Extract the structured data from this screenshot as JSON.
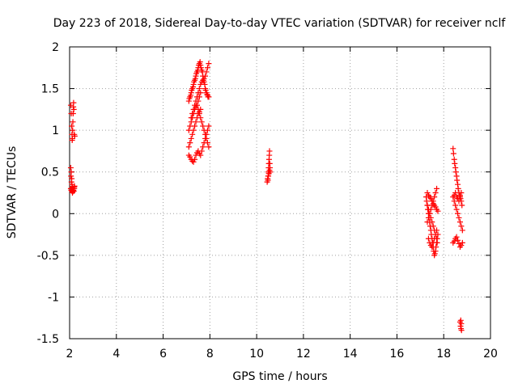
{
  "chart_data": {
    "type": "scatter",
    "title": "Day 223 of 2018, Sidereal Day-to-day VTEC variation (SDTVAR) for receiver nclf",
    "xlabel": "GPS time / hours",
    "ylabel": "SDTVAR / TECUs",
    "xlim": [
      2,
      20
    ],
    "ylim": [
      -1.5,
      2
    ],
    "xticks": [
      2,
      4,
      6,
      8,
      10,
      12,
      14,
      16,
      18,
      20
    ],
    "yticks": [
      -1.5,
      -1,
      -0.5,
      0,
      0.5,
      1,
      1.5,
      2
    ],
    "xtick_labels": [
      "2",
      "4",
      "6",
      "8",
      "10",
      "12",
      "14",
      "16",
      "18",
      "20"
    ],
    "ytick_labels": [
      "-1.5",
      "-1",
      "-0.5",
      "0",
      "0.5",
      "1",
      "1.5",
      "2"
    ],
    "grid": true,
    "marker": "plus",
    "color": "#ff0000",
    "series": [
      {
        "x": [
          2.05,
          2.07,
          2.09,
          2.1,
          2.11,
          2.12,
          2.13,
          2.14,
          2.15,
          2.16,
          2.17,
          2.18,
          2.2,
          2.22,
          2.05,
          2.07,
          2.09,
          2.1,
          2.12,
          2.14,
          2.16,
          2.18,
          2.2,
          2.21,
          2.06,
          2.08,
          2.1,
          2.12,
          2.05,
          2.07,
          2.1,
          2.13,
          2.15,
          2.18,
          2.2,
          7.1,
          7.12,
          7.15,
          7.18,
          7.2,
          7.22,
          7.25,
          7.28,
          7.3,
          7.32,
          7.35,
          7.38,
          7.4,
          7.42,
          7.45,
          7.48,
          7.5,
          7.52,
          7.55,
          7.58,
          7.6,
          7.62,
          7.65,
          7.68,
          7.7,
          7.72,
          7.75,
          7.78,
          7.8,
          7.82,
          7.85,
          7.88,
          7.9,
          7.92,
          7.95,
          7.2,
          7.25,
          7.3,
          7.35,
          7.4,
          7.45,
          7.5,
          7.55,
          7.6,
          7.65,
          7.7,
          7.75,
          7.8,
          7.85,
          7.9,
          7.95,
          7.1,
          7.15,
          7.2,
          7.25,
          7.3,
          7.35,
          7.4,
          7.45,
          7.5,
          7.55,
          7.6,
          7.45,
          7.5,
          7.55,
          7.6,
          7.65,
          7.7,
          7.75,
          7.8,
          7.85,
          7.9,
          7.95,
          7.1,
          7.15,
          7.2,
          7.25,
          7.3,
          7.35,
          7.4,
          7.45,
          7.5,
          7.55,
          7.6,
          7.65,
          7.7,
          7.75,
          7.8,
          7.85,
          7.9,
          7.95,
          7.1,
          7.15,
          7.2,
          7.25,
          7.3,
          7.35,
          7.4,
          7.45,
          7.5,
          7.55,
          7.6,
          10.45,
          10.47,
          10.49,
          10.5,
          10.51,
          10.52,
          10.53,
          10.54,
          10.55,
          10.56,
          10.57,
          10.58,
          10.5,
          10.48,
          10.52,
          10.55,
          17.25,
          17.27,
          17.3,
          17.32,
          17.35,
          17.37,
          17.4,
          17.42,
          17.45,
          17.47,
          17.5,
          17.52,
          17.55,
          17.57,
          17.6,
          17.62,
          17.65,
          17.67,
          17.7,
          17.72,
          17.75,
          17.3,
          17.35,
          17.4,
          17.45,
          17.5,
          17.55,
          17.6,
          17.65,
          17.7,
          17.75,
          17.3,
          17.35,
          17.4,
          17.45,
          17.5,
          17.55,
          17.6,
          17.65,
          17.7,
          17.3,
          17.35,
          17.4,
          17.45,
          17.5,
          17.55,
          17.6,
          17.65,
          17.7,
          17.72,
          17.35,
          17.4,
          17.45,
          17.5,
          17.55,
          17.6,
          17.65,
          17.7,
          18.4,
          18.42,
          18.45,
          18.47,
          18.5,
          18.52,
          18.55,
          18.57,
          18.6,
          18.62,
          18.65,
          18.68,
          18.7,
          18.72,
          18.75,
          18.78,
          18.4,
          18.45,
          18.5,
          18.55,
          18.6,
          18.65,
          18.7,
          18.75,
          18.8,
          18.4,
          18.45,
          18.5,
          18.55,
          18.6,
          18.65,
          18.7,
          18.75,
          18.8,
          18.45,
          18.5,
          18.55,
          18.6,
          18.65,
          18.7,
          18.75,
          18.7,
          18.72,
          18.74,
          18.76,
          18.75,
          18.73
        ],
        "y": [
          1.3,
          1.2,
          1.05,
          0.95,
          0.88,
          0.9,
          1.0,
          1.1,
          1.2,
          1.28,
          1.33,
          1.25,
          0.95,
          0.93,
          0.55,
          0.5,
          0.42,
          0.35,
          0.32,
          0.3,
          0.28,
          0.27,
          0.3,
          0.33,
          0.45,
          0.38,
          0.3,
          0.25,
          0.3,
          0.28,
          0.27,
          0.26,
          0.28,
          0.3,
          0.32,
          1.35,
          1.38,
          1.4,
          1.42,
          1.45,
          1.48,
          1.5,
          1.52,
          1.55,
          1.58,
          1.6,
          1.62,
          1.65,
          1.68,
          1.7,
          1.72,
          1.75,
          1.78,
          1.8,
          1.82,
          1.78,
          1.75,
          1.72,
          1.7,
          1.65,
          1.6,
          1.58,
          1.55,
          1.5,
          1.48,
          1.45,
          1.43,
          1.42,
          1.4,
          1.4,
          1.15,
          1.2,
          1.25,
          1.3,
          1.35,
          1.4,
          1.45,
          1.5,
          1.55,
          1.58,
          1.6,
          1.62,
          1.65,
          1.7,
          1.75,
          1.8,
          1.0,
          1.05,
          1.1,
          1.15,
          1.2,
          1.25,
          1.28,
          1.3,
          1.35,
          1.4,
          1.45,
          1.3,
          1.25,
          1.2,
          1.15,
          1.1,
          1.05,
          1.0,
          0.95,
          0.9,
          0.85,
          0.8,
          0.7,
          0.68,
          0.65,
          0.63,
          0.62,
          0.65,
          0.7,
          0.73,
          0.75,
          0.72,
          0.7,
          0.75,
          0.8,
          0.85,
          0.9,
          0.95,
          1.0,
          1.05,
          0.8,
          0.85,
          0.9,
          0.95,
          1.0,
          1.05,
          1.1,
          1.15,
          1.2,
          1.22,
          1.25,
          0.38,
          0.42,
          0.45,
          0.5,
          0.55,
          0.6,
          0.65,
          0.7,
          0.75,
          0.6,
          0.55,
          0.5,
          0.45,
          0.4,
          0.48,
          0.52,
          0.2,
          0.15,
          0.1,
          0.05,
          0.0,
          -0.05,
          -0.1,
          -0.15,
          -0.2,
          -0.25,
          -0.3,
          -0.35,
          -0.4,
          -0.45,
          -0.5,
          -0.48,
          -0.45,
          -0.4,
          -0.35,
          -0.3,
          -0.25,
          0.25,
          0.22,
          0.2,
          0.18,
          0.15,
          0.12,
          0.1,
          0.08,
          0.05,
          0.03,
          -0.1,
          -0.05,
          0.0,
          0.05,
          0.1,
          0.15,
          0.2,
          0.25,
          0.3,
          0.1,
          0.05,
          0.0,
          -0.05,
          -0.1,
          -0.15,
          -0.2,
          -0.25,
          -0.3,
          -0.35,
          -0.3,
          -0.35,
          -0.38,
          -0.4,
          -0.35,
          -0.3,
          -0.25,
          -0.2,
          0.78,
          0.72,
          0.65,
          0.6,
          0.55,
          0.5,
          0.45,
          0.4,
          0.35,
          0.3,
          0.25,
          0.22,
          0.2,
          0.18,
          0.15,
          0.1,
          -0.35,
          -0.33,
          -0.3,
          -0.28,
          -0.32,
          -0.36,
          -0.4,
          -0.38,
          -0.35,
          0.2,
          0.15,
          0.1,
          0.05,
          0.0,
          -0.05,
          -0.1,
          -0.15,
          -0.2,
          0.22,
          0.25,
          0.2,
          0.18,
          0.15,
          0.22,
          0.25,
          -1.3,
          -1.35,
          -1.38,
          -1.4,
          -1.32,
          -1.28
        ]
      }
    ]
  }
}
